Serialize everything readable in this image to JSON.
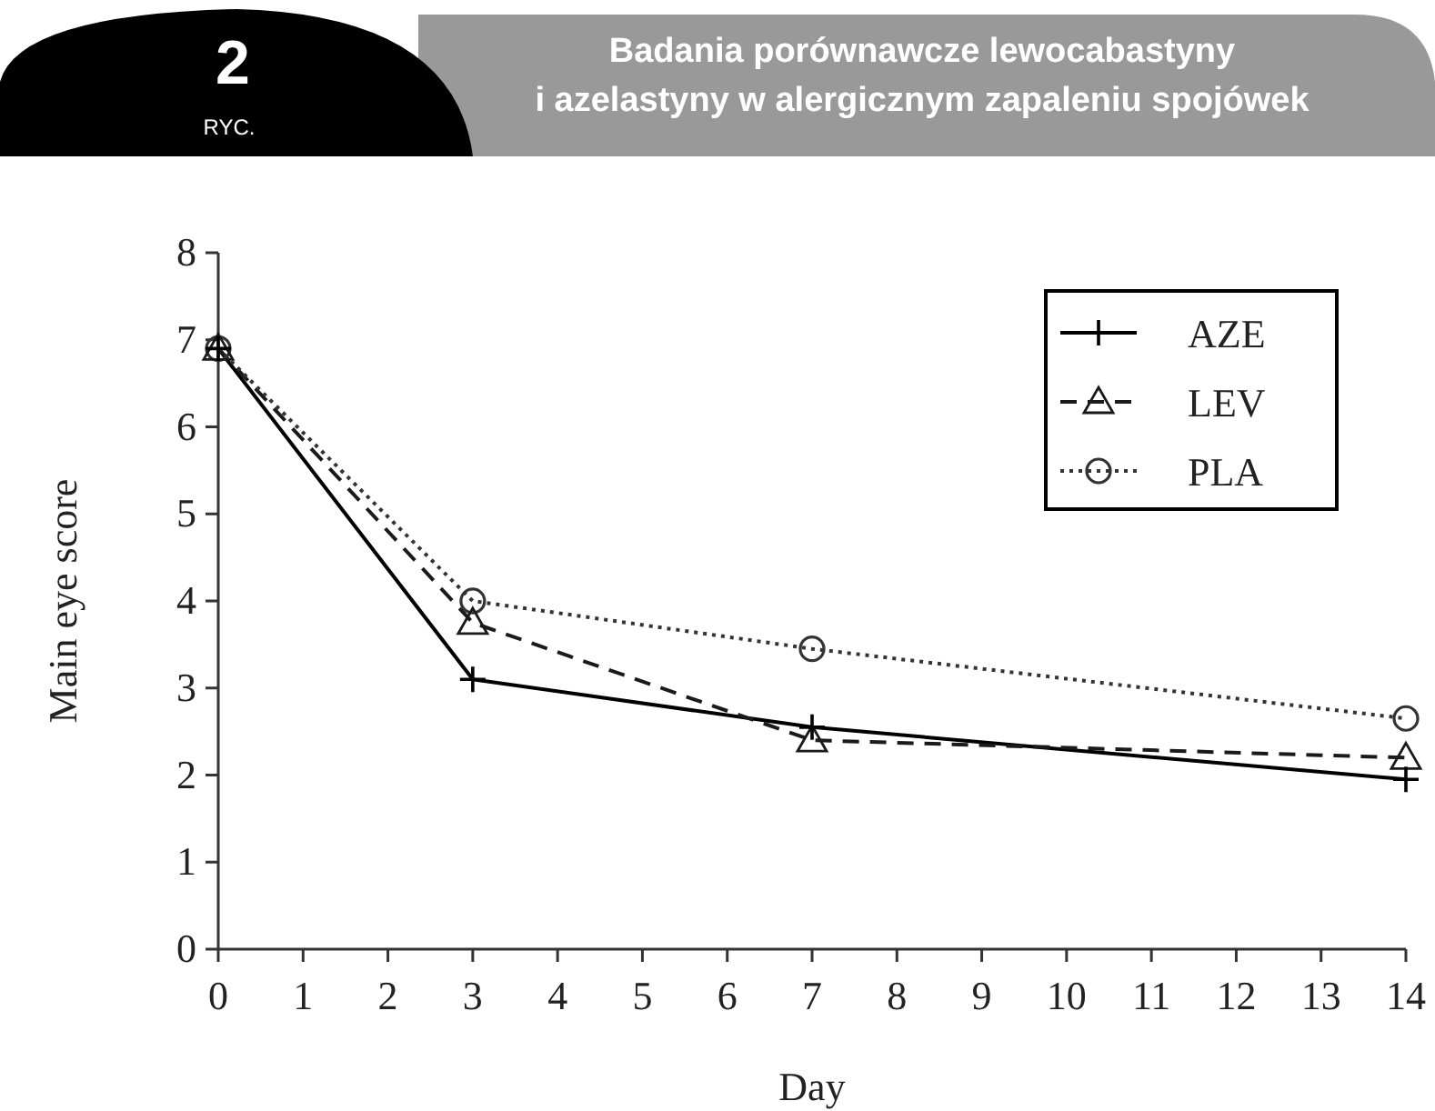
{
  "chart_data": {
    "type": "line",
    "title": "Badania porównawcze lewocabastyny i azelastyny w alergicznym zapaleniu spojówek",
    "annotations": [
      "2",
      "RYC."
    ],
    "xlabel": "Day",
    "ylabel": "Main eye score",
    "x": [
      0,
      3,
      7,
      14
    ],
    "series": [
      {
        "name": "AZE",
        "color": "#000000",
        "values": [
          6.9,
          3.1,
          2.55,
          1.95
        ],
        "marker": "cross",
        "line_style": "solid"
      },
      {
        "name": "LEV",
        "color": "#1a1a1a",
        "values": [
          6.9,
          3.75,
          2.4,
          2.2
        ],
        "marker": "triangle",
        "line_style": "dashed"
      },
      {
        "name": "PLA",
        "color": "#333333",
        "values": [
          6.9,
          4.0,
          3.45,
          2.65
        ],
        "marker": "circle",
        "line_style": "dotted"
      }
    ],
    "xlim": [
      0,
      14
    ],
    "xticks": [
      0,
      1,
      2,
      3,
      4,
      5,
      6,
      7,
      8,
      9,
      10,
      11,
      12,
      13,
      14
    ],
    "ylim": [
      0,
      8
    ],
    "yticks": [
      0,
      1,
      2,
      3,
      4,
      5,
      6,
      7,
      8
    ],
    "grid": false,
    "legend": "top right"
  }
}
